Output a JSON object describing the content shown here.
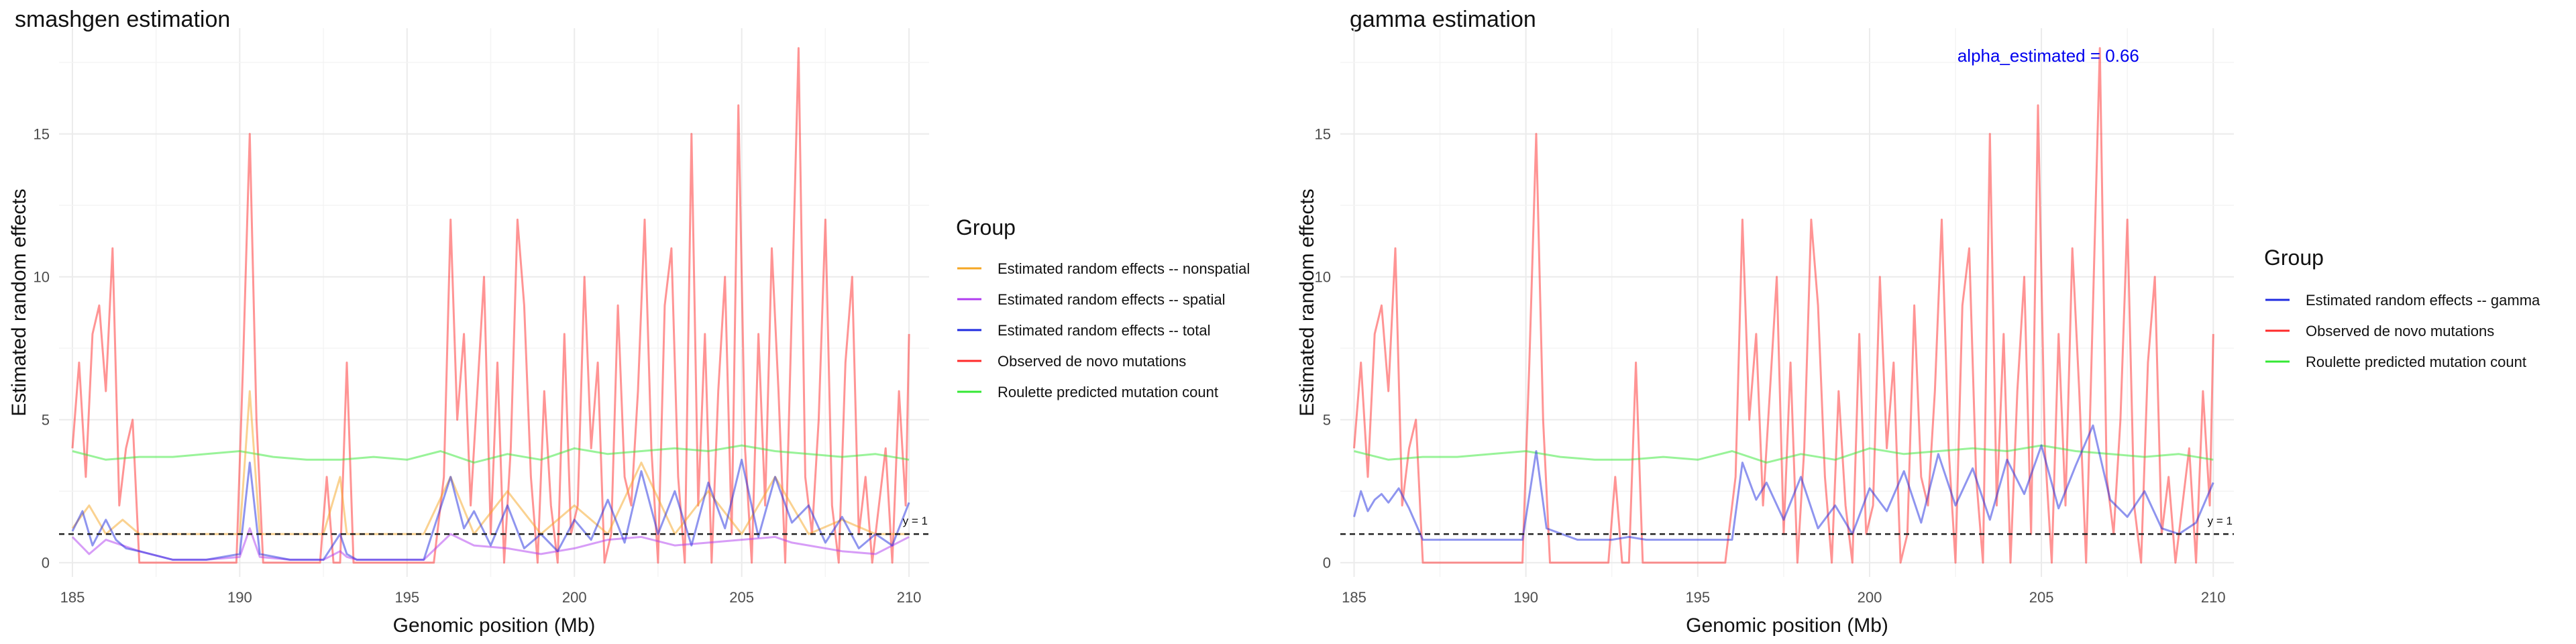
{
  "chart_data": [
    {
      "type": "line",
      "title": "smashgen estimation",
      "xlabel": "Genomic position (Mb)",
      "ylabel": "Estimated random effects",
      "xlim": [
        184.6,
        210.6
      ],
      "ylim": [
        -0.5,
        18.7
      ],
      "xticks": [
        185,
        190,
        195,
        200,
        205,
        210
      ],
      "yticks": [
        0,
        5,
        10,
        15
      ],
      "grid": true,
      "hline": {
        "y": 1,
        "label": "y = 1",
        "style": "dashed"
      },
      "legend": {
        "title": "Group",
        "position": "right",
        "entries": [
          {
            "label": "Estimated random effects -- nonspatial",
            "color": "#f5a623"
          },
          {
            "label": "Estimated random effects -- spatial",
            "color": "#b03cf0"
          },
          {
            "label": "Estimated random effects -- total",
            "color": "#1f2be0"
          },
          {
            "label": "Observed de novo mutations",
            "color": "#ff2a2a"
          },
          {
            "label": "Roulette predicted mutation count",
            "color": "#34e834"
          }
        ]
      },
      "series": [
        {
          "name": "Observed de novo mutations",
          "color": "#ff2a2a",
          "x": [
            185.0,
            185.2,
            185.4,
            185.6,
            185.8,
            186.0,
            186.2,
            186.4,
            186.6,
            186.8,
            187.0,
            187.5,
            188.0,
            188.5,
            189.0,
            189.5,
            189.9,
            190.1,
            190.3,
            190.5,
            190.7,
            190.9,
            191.2,
            191.6,
            192.0,
            192.4,
            192.6,
            192.8,
            193.0,
            193.2,
            193.4,
            193.8,
            194.2,
            194.6,
            195.0,
            195.4,
            195.8,
            196.1,
            196.3,
            196.5,
            196.7,
            196.9,
            197.1,
            197.3,
            197.5,
            197.7,
            197.9,
            198.1,
            198.3,
            198.5,
            198.7,
            198.9,
            199.1,
            199.3,
            199.5,
            199.7,
            199.9,
            200.1,
            200.3,
            200.5,
            200.7,
            200.9,
            201.1,
            201.3,
            201.5,
            201.7,
            201.9,
            202.1,
            202.3,
            202.5,
            202.7,
            202.9,
            203.1,
            203.3,
            203.5,
            203.7,
            203.9,
            204.1,
            204.3,
            204.5,
            204.7,
            204.9,
            205.1,
            205.3,
            205.5,
            205.7,
            205.9,
            206.1,
            206.3,
            206.5,
            206.7,
            206.9,
            207.1,
            207.3,
            207.5,
            207.7,
            207.9,
            208.1,
            208.3,
            208.5,
            208.7,
            208.9,
            209.1,
            209.3,
            209.5,
            209.7,
            209.9,
            210.0
          ],
          "y": [
            4,
            7,
            3,
            8,
            9,
            6,
            11,
            2,
            4,
            5,
            0,
            0,
            0,
            0,
            0,
            0,
            0,
            7,
            15,
            5,
            0,
            0,
            0,
            0,
            0,
            0,
            3,
            0,
            0,
            7,
            0,
            0,
            0,
            0,
            0,
            0,
            0,
            3,
            12,
            5,
            8,
            2,
            6,
            10,
            1,
            7,
            0,
            4,
            12,
            9,
            3,
            0,
            6,
            2,
            0,
            8,
            1,
            2,
            10,
            4,
            7,
            0,
            1,
            9,
            3,
            2,
            6,
            12,
            4,
            0,
            9,
            11,
            3,
            0,
            15,
            2,
            8,
            0,
            6,
            10,
            1,
            16,
            4,
            0,
            8,
            2,
            11,
            6,
            0,
            9,
            18,
            3,
            1,
            5,
            12,
            2,
            0,
            7,
            10,
            1,
            3,
            0,
            2,
            4,
            0,
            6,
            2,
            8
          ]
        },
        {
          "name": "Roulette predicted mutation count",
          "color": "#34e834",
          "x": [
            185,
            186,
            187,
            188,
            189,
            190,
            191,
            192,
            193,
            194,
            195,
            196,
            197,
            198,
            199,
            200,
            201,
            202,
            203,
            204,
            205,
            206,
            207,
            208,
            209,
            210
          ],
          "y": [
            3.9,
            3.6,
            3.7,
            3.7,
            3.8,
            3.9,
            3.7,
            3.6,
            3.6,
            3.7,
            3.6,
            3.9,
            3.5,
            3.8,
            3.6,
            4.0,
            3.8,
            3.9,
            4.0,
            3.9,
            4.1,
            3.9,
            3.8,
            3.7,
            3.8,
            3.6
          ]
        },
        {
          "name": "Estimated random effects -- nonspatial",
          "color": "#f5a623",
          "x": [
            185.0,
            185.5,
            186.0,
            186.5,
            187.0,
            188.0,
            189.0,
            190.0,
            190.3,
            190.6,
            191.5,
            192.5,
            193.0,
            193.2,
            193.5,
            194.5,
            195.5,
            196.3,
            197.0,
            198.0,
            199.0,
            200.0,
            201.0,
            202.0,
            203.0,
            204.0,
            205.0,
            206.0,
            206.5,
            207.0,
            208.0,
            209.0,
            210.0
          ],
          "y": [
            1.2,
            2.0,
            1.0,
            1.5,
            1.0,
            1.0,
            1.0,
            1.0,
            6.0,
            1.0,
            1.0,
            1.0,
            3.0,
            1.0,
            1.0,
            1.0,
            1.0,
            3.0,
            1.0,
            2.5,
            1.0,
            2.0,
            1.0,
            3.5,
            1.0,
            2.5,
            1.0,
            3.0,
            2.0,
            1.0,
            1.5,
            1.0,
            1.0
          ]
        },
        {
          "name": "Estimated random effects -- spatial",
          "color": "#b03cf0",
          "x": [
            185.0,
            185.5,
            186.0,
            186.5,
            187.0,
            188.0,
            189.0,
            190.0,
            190.3,
            190.6,
            191.5,
            192.5,
            193.0,
            193.2,
            193.5,
            194.5,
            195.5,
            196.3,
            197.0,
            198.0,
            199.0,
            200.0,
            201.0,
            202.0,
            203.0,
            204.0,
            205.0,
            206.0,
            206.5,
            207.0,
            208.0,
            209.0,
            210.0
          ],
          "y": [
            0.9,
            0.3,
            0.8,
            0.6,
            0.4,
            0.1,
            0.1,
            0.2,
            1.2,
            0.2,
            0.1,
            0.1,
            0.4,
            0.2,
            0.1,
            0.1,
            0.1,
            1.0,
            0.6,
            0.5,
            0.3,
            0.5,
            0.8,
            0.9,
            0.6,
            0.7,
            0.8,
            0.9,
            0.7,
            0.6,
            0.4,
            0.3,
            0.9
          ]
        },
        {
          "name": "Estimated random effects -- total",
          "color": "#1f2be0",
          "x": [
            185.0,
            185.3,
            185.6,
            186.0,
            186.3,
            186.6,
            187.0,
            188.0,
            189.0,
            190.0,
            190.3,
            190.6,
            191.5,
            192.5,
            193.0,
            193.2,
            193.5,
            194.5,
            195.5,
            196.3,
            196.7,
            197.0,
            197.5,
            198.0,
            198.5,
            199.0,
            199.5,
            200.0,
            200.5,
            201.0,
            201.5,
            202.0,
            202.5,
            203.0,
            203.5,
            204.0,
            204.5,
            205.0,
            205.5,
            206.0,
            206.5,
            207.0,
            207.5,
            208.0,
            208.5,
            209.0,
            209.5,
            210.0
          ],
          "y": [
            1.1,
            1.8,
            0.6,
            1.5,
            0.8,
            0.5,
            0.4,
            0.1,
            0.1,
            0.3,
            3.5,
            0.3,
            0.1,
            0.1,
            1.0,
            0.3,
            0.1,
            0.1,
            0.1,
            3.0,
            1.2,
            1.8,
            0.6,
            2.0,
            0.5,
            1.0,
            0.4,
            1.5,
            0.8,
            2.2,
            0.7,
            3.2,
            1.0,
            2.5,
            0.6,
            2.8,
            1.2,
            3.6,
            0.9,
            3.0,
            1.4,
            2.0,
            0.7,
            1.6,
            0.5,
            1.0,
            0.6,
            2.1
          ]
        }
      ]
    },
    {
      "type": "line",
      "title": "gamma estimation",
      "xlabel": "Genomic position (Mb)",
      "ylabel": "Estimated random effects",
      "xlim": [
        184.6,
        210.6
      ],
      "ylim": [
        -0.5,
        18.7
      ],
      "xticks": [
        185,
        190,
        195,
        200,
        205,
        210
      ],
      "yticks": [
        0,
        5,
        10,
        15
      ],
      "grid": true,
      "hline": {
        "y": 1,
        "label": "y = 1",
        "style": "dashed"
      },
      "annotation": "alpha_estimated = 0.66",
      "legend": {
        "title": "Group",
        "position": "right",
        "entries": [
          {
            "label": "Estimated random effects -- gamma",
            "color": "#1f2be0"
          },
          {
            "label": "Observed de novo mutations",
            "color": "#ff2a2a"
          },
          {
            "label": "Roulette predicted mutation count",
            "color": "#34e834"
          }
        ]
      },
      "series": [
        {
          "name": "Observed de novo mutations",
          "color": "#ff2a2a",
          "x": [
            185.0,
            185.2,
            185.4,
            185.6,
            185.8,
            186.0,
            186.2,
            186.4,
            186.6,
            186.8,
            187.0,
            187.5,
            188.0,
            188.5,
            189.0,
            189.5,
            189.9,
            190.1,
            190.3,
            190.5,
            190.7,
            190.9,
            191.2,
            191.6,
            192.0,
            192.4,
            192.6,
            192.8,
            193.0,
            193.2,
            193.4,
            193.8,
            194.2,
            194.6,
            195.0,
            195.4,
            195.8,
            196.1,
            196.3,
            196.5,
            196.7,
            196.9,
            197.1,
            197.3,
            197.5,
            197.7,
            197.9,
            198.1,
            198.3,
            198.5,
            198.7,
            198.9,
            199.1,
            199.3,
            199.5,
            199.7,
            199.9,
            200.1,
            200.3,
            200.5,
            200.7,
            200.9,
            201.1,
            201.3,
            201.5,
            201.7,
            201.9,
            202.1,
            202.3,
            202.5,
            202.7,
            202.9,
            203.1,
            203.3,
            203.5,
            203.7,
            203.9,
            204.1,
            204.3,
            204.5,
            204.7,
            204.9,
            205.1,
            205.3,
            205.5,
            205.7,
            205.9,
            206.1,
            206.3,
            206.5,
            206.7,
            206.9,
            207.1,
            207.3,
            207.5,
            207.7,
            207.9,
            208.1,
            208.3,
            208.5,
            208.7,
            208.9,
            209.1,
            209.3,
            209.5,
            209.7,
            209.9,
            210.0
          ],
          "y": [
            4,
            7,
            3,
            8,
            9,
            6,
            11,
            2,
            4,
            5,
            0,
            0,
            0,
            0,
            0,
            0,
            0,
            7,
            15,
            5,
            0,
            0,
            0,
            0,
            0,
            0,
            3,
            0,
            0,
            7,
            0,
            0,
            0,
            0,
            0,
            0,
            0,
            3,
            12,
            5,
            8,
            2,
            6,
            10,
            1,
            7,
            0,
            4,
            12,
            9,
            3,
            0,
            6,
            2,
            0,
            8,
            1,
            2,
            10,
            4,
            7,
            0,
            1,
            9,
            3,
            2,
            6,
            12,
            4,
            0,
            9,
            11,
            3,
            0,
            15,
            2,
            8,
            0,
            6,
            10,
            1,
            16,
            4,
            0,
            8,
            2,
            11,
            6,
            0,
            9,
            18,
            3,
            1,
            5,
            12,
            2,
            0,
            7,
            10,
            1,
            3,
            0,
            2,
            4,
            0,
            6,
            2,
            8
          ]
        },
        {
          "name": "Roulette predicted mutation count",
          "color": "#34e834",
          "x": [
            185,
            186,
            187,
            188,
            189,
            190,
            191,
            192,
            193,
            194,
            195,
            196,
            197,
            198,
            199,
            200,
            201,
            202,
            203,
            204,
            205,
            206,
            207,
            208,
            209,
            210
          ],
          "y": [
            3.9,
            3.6,
            3.7,
            3.7,
            3.8,
            3.9,
            3.7,
            3.6,
            3.6,
            3.7,
            3.6,
            3.9,
            3.5,
            3.8,
            3.6,
            4.0,
            3.8,
            3.9,
            4.0,
            3.9,
            4.1,
            3.9,
            3.8,
            3.7,
            3.8,
            3.6
          ]
        },
        {
          "name": "Estimated random effects -- gamma",
          "color": "#1f2be0",
          "x": [
            185.0,
            185.2,
            185.4,
            185.6,
            185.8,
            186.0,
            186.3,
            186.6,
            187.0,
            188.0,
            189.0,
            189.9,
            190.3,
            190.6,
            191.5,
            192.5,
            193.0,
            193.5,
            194.5,
            195.5,
            196.0,
            196.3,
            196.7,
            197.0,
            197.5,
            198.0,
            198.5,
            199.0,
            199.5,
            200.0,
            200.5,
            201.0,
            201.5,
            202.0,
            202.5,
            203.0,
            203.5,
            204.0,
            204.5,
            205.0,
            205.5,
            206.0,
            206.5,
            207.0,
            207.5,
            208.0,
            208.5,
            209.0,
            209.5,
            210.0
          ],
          "y": [
            1.6,
            2.5,
            1.8,
            2.2,
            2.4,
            2.1,
            2.6,
            1.9,
            0.8,
            0.8,
            0.8,
            0.8,
            3.9,
            1.2,
            0.8,
            0.8,
            0.9,
            0.8,
            0.8,
            0.8,
            0.8,
            3.5,
            2.2,
            2.8,
            1.5,
            3.0,
            1.2,
            2.0,
            1.0,
            2.6,
            1.8,
            3.2,
            1.4,
            3.8,
            2.0,
            3.3,
            1.5,
            3.6,
            2.4,
            4.1,
            1.9,
            3.4,
            4.8,
            2.2,
            1.6,
            2.5,
            1.2,
            1.0,
            1.4,
            2.8
          ]
        }
      ]
    }
  ]
}
